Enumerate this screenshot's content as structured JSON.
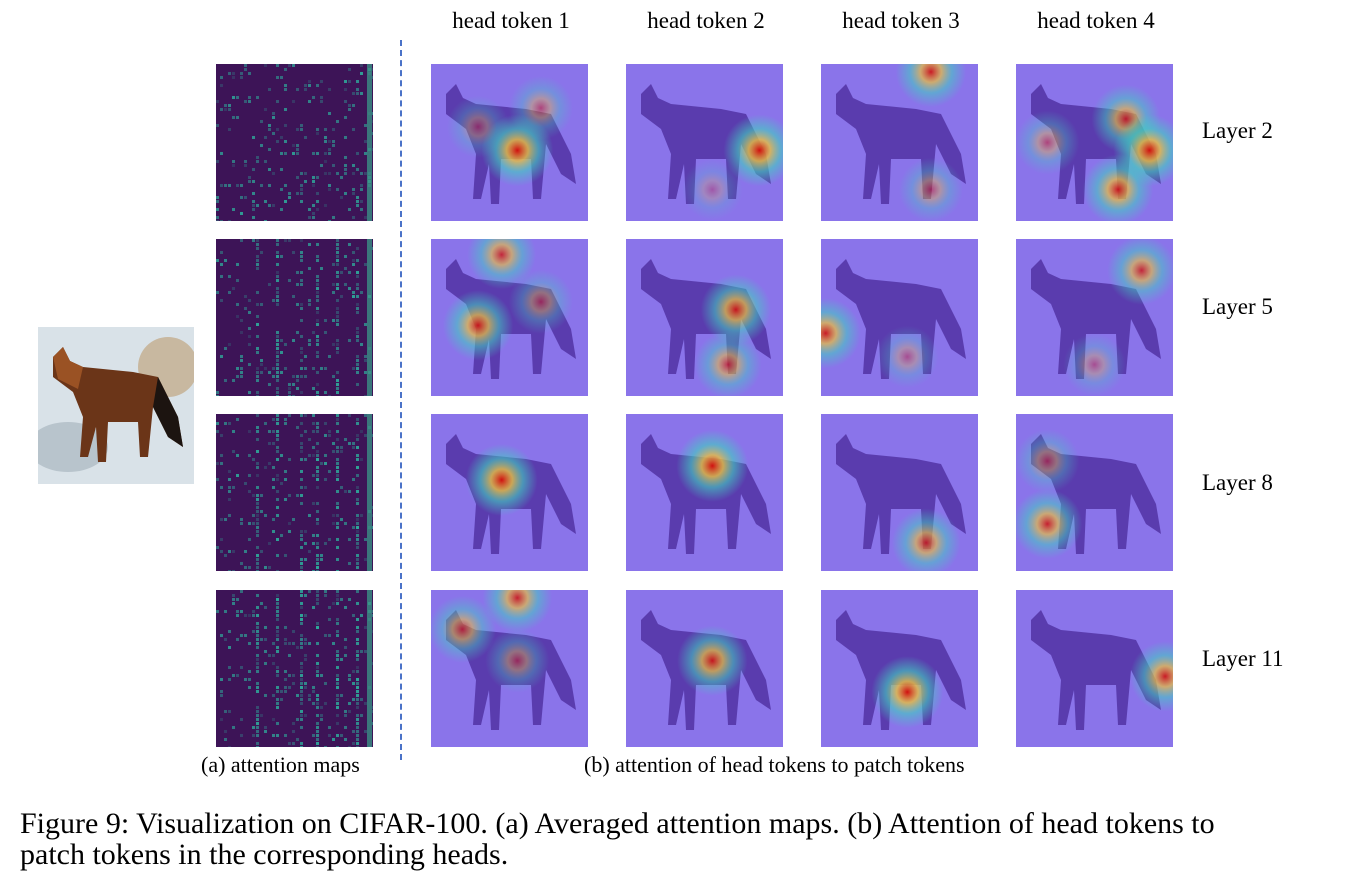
{
  "figure": {
    "input_image": {
      "label": "fox image (CIFAR-100 sample)"
    },
    "column_headers": [
      "head token 1",
      "head token 2",
      "head token 3",
      "head token 4"
    ],
    "row_labels": [
      "Layer 2",
      "Layer 5",
      "Layer 8",
      "Layer 11"
    ],
    "subcaption_a": "(a) attention maps",
    "subcaption_b": "(b) attention of head tokens to patch tokens",
    "caption_line1": "Figure 9: Visualization on CIFAR-100. (a) Averaged attention maps. (b) Attention of head tokens to",
    "caption_line2": "patch tokens in the corresponding heads.",
    "colors": {
      "heatmap_base": "#8a74ea",
      "attention_base": "#3d1457",
      "divider": "#4a72c8"
    }
  }
}
